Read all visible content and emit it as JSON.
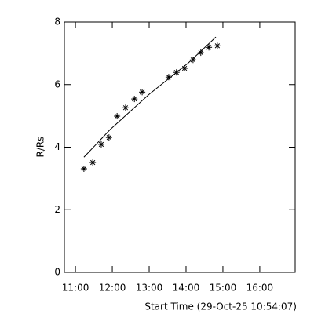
{
  "chart_data": {
    "type": "scatter",
    "x_label": "Start Time (29-Oct-25 10:54:07)",
    "y_label": "R/Rs",
    "xlim": [
      10.7,
      16.96
    ],
    "ylim": [
      0,
      8
    ],
    "xticks": [
      {
        "value": 11,
        "label": "11:00"
      },
      {
        "value": 12,
        "label": "12:00"
      },
      {
        "value": 13,
        "label": "13:00"
      },
      {
        "value": 14,
        "label": "14:00"
      },
      {
        "value": 15,
        "label": "15:00"
      },
      {
        "value": 16,
        "label": "16:00"
      }
    ],
    "yticks": [
      0,
      2,
      4,
      6,
      8
    ],
    "series": [
      {
        "type": "scatter",
        "color": "#000000",
        "x": [
          11.23,
          11.47,
          11.7,
          11.91,
          12.13,
          12.36,
          12.6,
          12.81,
          13.53,
          13.74,
          13.96,
          14.19,
          14.4,
          14.62,
          14.85
        ],
        "values": [
          3.31,
          3.51,
          4.09,
          4.31,
          4.99,
          5.26,
          5.54,
          5.76,
          6.24,
          6.39,
          6.52,
          6.79,
          7.02,
          7.19,
          7.24
        ]
      },
      {
        "type": "line",
        "color": "#000000",
        "x": [
          11.23,
          11.94,
          13.0,
          14.06,
          14.81
        ],
        "values": [
          3.68,
          4.56,
          5.69,
          6.69,
          7.52
        ]
      }
    ]
  }
}
